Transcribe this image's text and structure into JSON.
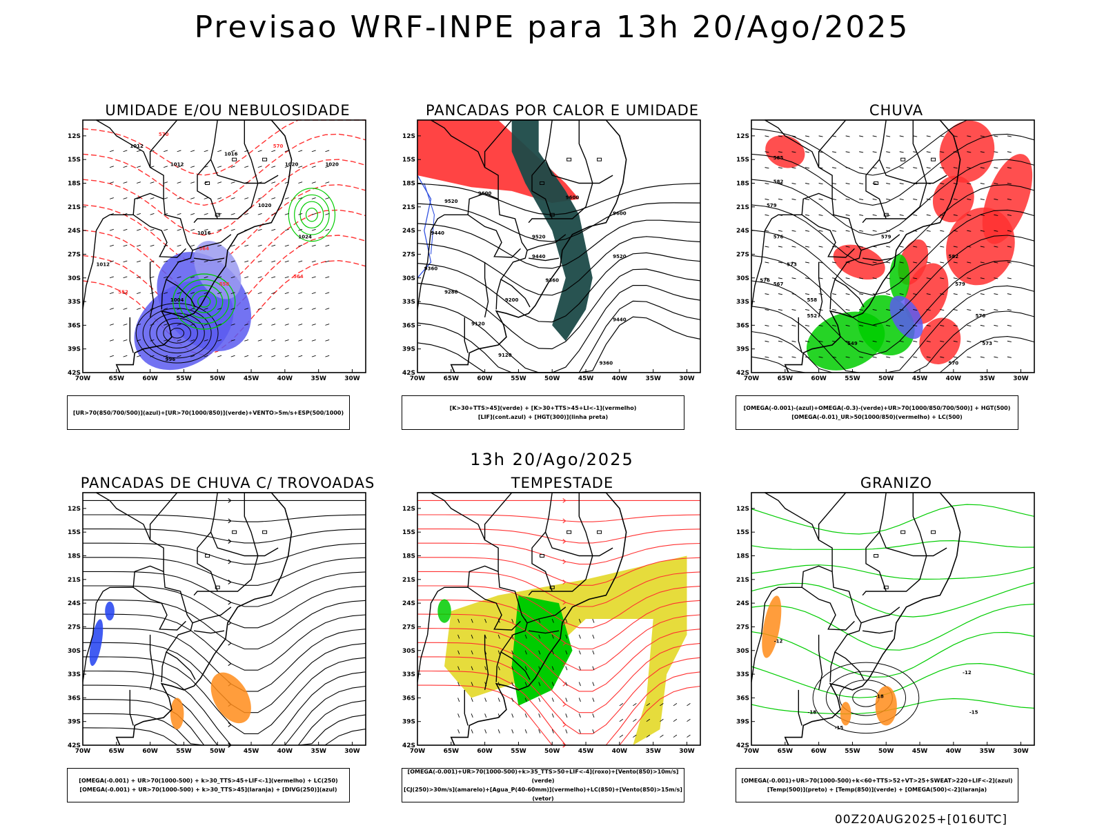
{
  "main_title": "Previsao WRF-INPE  para 13h 20/Ago/2025",
  "mid_title": "13h 20/Ago/2025",
  "footer": "00Z20AUG2025+[016UTC]",
  "axes": {
    "lat_labels": [
      "12S",
      "15S",
      "18S",
      "21S",
      "24S",
      "27S",
      "30S",
      "33S",
      "36S",
      "39S",
      "42S"
    ],
    "lon_labels": [
      "70W",
      "65W",
      "60W",
      "55W",
      "50W",
      "45W",
      "40W",
      "35W",
      "30W"
    ],
    "lat_range": [
      -42,
      -10
    ],
    "lon_range": [
      -70,
      -28
    ]
  },
  "colors": {
    "blue": "#5a5af0",
    "green": "#00cc00",
    "red": "#ff3030",
    "dark": "#1c4a48",
    "yellow": "#e6dc3c",
    "orange": "#ff8c1a"
  },
  "chart_data": [
    {
      "type": "contour",
      "title": "UMIDADE E/OU NEBULOSIDADE",
      "legend": [
        "[UR>70(850/700/500)](azul)+[UR>70(1000/850)](verde)+VENTO>5m/s+ESP(500/1000)"
      ],
      "contour_labels": [
        {
          "text": "1012",
          "lon": -62,
          "lat": -13.5
        },
        {
          "text": "1016",
          "lon": -48,
          "lat": -14.5
        },
        {
          "text": "1012",
          "lon": -56,
          "lat": -15.8
        },
        {
          "text": "1020",
          "lon": -39,
          "lat": -15.8
        },
        {
          "text": "1020",
          "lon": -33,
          "lat": -15.8
        },
        {
          "text": "1020",
          "lon": -43,
          "lat": -21
        },
        {
          "text": "1016",
          "lon": -52,
          "lat": -24.5
        },
        {
          "text": "1024",
          "lon": -37,
          "lat": -25
        },
        {
          "text": "1012",
          "lon": -67,
          "lat": -28.5
        },
        {
          "text": "1004",
          "lon": -56,
          "lat": -33
        },
        {
          "text": "996",
          "lon": -57,
          "lat": -40.5
        },
        {
          "text": "570",
          "lon": -58,
          "lat": -12
        },
        {
          "text": "570",
          "lon": -41,
          "lat": -13.5
        },
        {
          "text": "564",
          "lon": -52,
          "lat": -26.5
        },
        {
          "text": "558",
          "lon": -49,
          "lat": -31
        },
        {
          "text": "552",
          "lon": -64,
          "lat": -32
        },
        {
          "text": "564",
          "lon": -38,
          "lat": -30
        }
      ]
    },
    {
      "type": "contour",
      "title": "PANCADAS POR CALOR E UMIDADE",
      "legend": [
        "[K>30+TTS>45](verde) + [K>30+TTS>45+LI<-1](vermelho)",
        "[LIF](cont.azul) + [HGT(300)](linha preta)"
      ],
      "contour_labels": [
        {
          "text": "9600",
          "lon": -60,
          "lat": -19.5
        },
        {
          "text": "9600",
          "lon": -47,
          "lat": -20
        },
        {
          "text": "9600",
          "lon": -40,
          "lat": -22
        },
        {
          "text": "9520",
          "lon": -65,
          "lat": -20.5
        },
        {
          "text": "9520",
          "lon": -52,
          "lat": -25
        },
        {
          "text": "9520",
          "lon": -40,
          "lat": -27.5
        },
        {
          "text": "9440",
          "lon": -67,
          "lat": -24.5
        },
        {
          "text": "9440",
          "lon": -52,
          "lat": -27.5
        },
        {
          "text": "9440",
          "lon": -40,
          "lat": -35.5
        },
        {
          "text": "9360",
          "lon": -68,
          "lat": -29
        },
        {
          "text": "9360",
          "lon": -50,
          "lat": -30.5
        },
        {
          "text": "9360",
          "lon": -42,
          "lat": -41
        },
        {
          "text": "9280",
          "lon": -65,
          "lat": -32
        },
        {
          "text": "9200",
          "lon": -56,
          "lat": -33
        },
        {
          "text": "9120",
          "lon": -61,
          "lat": -36
        },
        {
          "text": "9120",
          "lon": -57,
          "lat": -40
        }
      ]
    },
    {
      "type": "contour",
      "title": "CHUVA",
      "legend": [
        "[OMEGA(-0.001)-(azul)+OMEGA(-0.3)-(verde)+UR>70(1000/850/700/500)] + HGT(500)",
        "[OMEGA(-0.01)_UR>50(1000/850)(vermelho) + LC(500)"
      ],
      "contour_labels": [
        {
          "text": "585",
          "lon": -66,
          "lat": -15
        },
        {
          "text": "582",
          "lon": -66,
          "lat": -18
        },
        {
          "text": "579",
          "lon": -67,
          "lat": -21
        },
        {
          "text": "579",
          "lon": -50,
          "lat": -25
        },
        {
          "text": "576",
          "lon": -66,
          "lat": -25
        },
        {
          "text": "573",
          "lon": -64,
          "lat": -28.5
        },
        {
          "text": "567",
          "lon": -66,
          "lat": -31
        },
        {
          "text": "576",
          "lon": -68,
          "lat": -30.5
        },
        {
          "text": "558",
          "lon": -61,
          "lat": -33
        },
        {
          "text": "552",
          "lon": -61,
          "lat": -35
        },
        {
          "text": "549",
          "lon": -55,
          "lat": -38.5
        },
        {
          "text": "582",
          "lon": -40,
          "lat": -27.5
        },
        {
          "text": "579",
          "lon": -39,
          "lat": -31
        },
        {
          "text": "576",
          "lon": -36,
          "lat": -35
        },
        {
          "text": "573",
          "lon": -35,
          "lat": -38.5
        },
        {
          "text": "570",
          "lon": -40,
          "lat": -41
        }
      ]
    },
    {
      "type": "streamline",
      "title": "PANCADAS DE CHUVA C/ TROVOADAS",
      "legend": [
        "[OMEGA(-0.001) + UR>70(1000-500) + k>30_TTS>45+LIF<-1](vermelho) + LC(250)",
        "[OMEGA(-0.001) + UR>70(1000-500) + k>30_TTS>45](laranja) + [DIVG(250)](azul)"
      ],
      "contour_labels": []
    },
    {
      "type": "streamline",
      "title": "TEMPESTADE",
      "legend": [
        "[OMEGA(-0.001)+UR>70(1000-500)+k>35_TTS>50+LIF<-4](roxo)+[Vento(850)>10m/s](verde)",
        "[CJ(250)>30m/s](amarelo)+[Agua_P(40-60mm)](vermelho)+LC(850)+[Vento(850)>15m/s](vetor)"
      ],
      "contour_labels": []
    },
    {
      "type": "contour",
      "title": "GRANIZO",
      "legend": [
        "[OMEGA(-0.001)+UR>70(1000-500)+k<60+TTS>52+VT>25+SWEAT>220+LIF<-2](azul)",
        "[Temp(500)](preto) + [Temp(850)](verde) + [OMEGA(500)<-2](laranja)"
      ],
      "contour_labels": [
        {
          "text": "-12",
          "lon": -66,
          "lat": -29
        },
        {
          "text": "-12",
          "lon": -38,
          "lat": -33
        },
        {
          "text": "-15",
          "lon": -37,
          "lat": -38
        },
        {
          "text": "-18",
          "lon": -61,
          "lat": -38
        },
        {
          "text": "-15",
          "lon": -57,
          "lat": -40
        },
        {
          "text": "-18",
          "lon": -51,
          "lat": -36
        }
      ]
    }
  ]
}
